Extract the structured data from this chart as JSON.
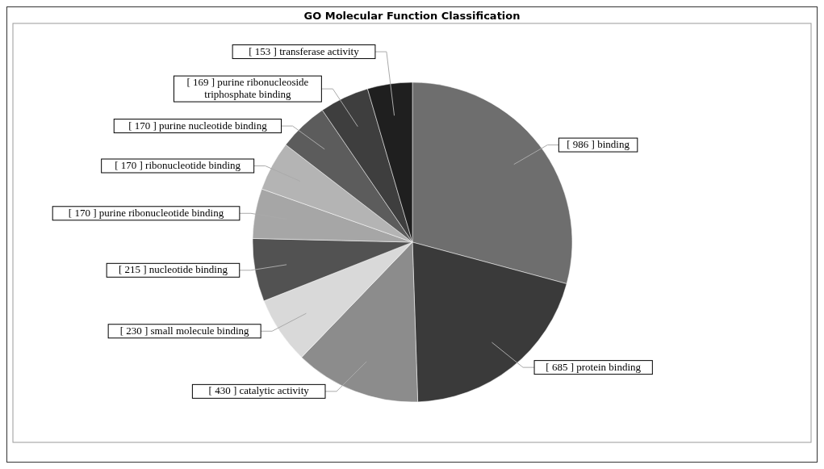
{
  "chart_data": {
    "type": "pie",
    "title": "GO Molecular Function Classification",
    "categories": [
      "[ 986 ] binding",
      "[ 685 ] protein binding",
      "[ 430 ] catalytic activity",
      "[ 230 ] small molecule binding",
      "[ 215 ] nucleotide binding",
      "[ 170 ] purine ribonucleotide binding",
      "[ 170 ] ribonucleotide binding",
      "[ 170 ] purine nucleotide binding",
      "[ 169 ] purine ribonucleoside triphosphate binding",
      "[ 153 ] transferase activity"
    ],
    "values": [
      986,
      685,
      430,
      230,
      215,
      170,
      170,
      170,
      169,
      153
    ],
    "colors": [
      "#6e6e6e",
      "#3a3a3a",
      "#8c8c8c",
      "#d9d9d9",
      "#525252",
      "#a6a6a6",
      "#b4b4b4",
      "#5c5c5c",
      "#3e3e3e",
      "#1f1f1f"
    ]
  }
}
